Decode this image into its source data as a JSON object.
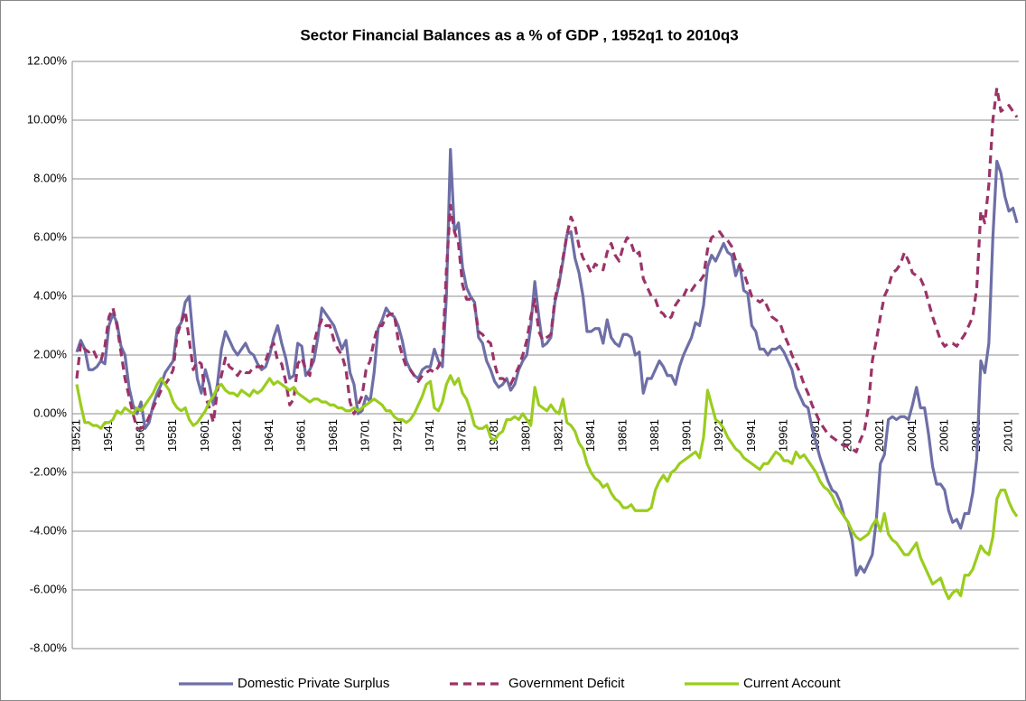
{
  "chart_data": {
    "type": "line",
    "title": "Sector Financial Balances as a % of GDP , 1952q1 to 2010q3",
    "categories": [
      "19521",
      null,
      null,
      null,
      null,
      null,
      null,
      null,
      "19541",
      null,
      null,
      null,
      null,
      null,
      null,
      null,
      "19561",
      null,
      null,
      null,
      null,
      null,
      null,
      null,
      "19581",
      null,
      null,
      null,
      null,
      null,
      null,
      null,
      "19601",
      null,
      null,
      null,
      null,
      null,
      null,
      null,
      "19621",
      null,
      null,
      null,
      null,
      null,
      null,
      null,
      "19641",
      null,
      null,
      null,
      null,
      null,
      null,
      null,
      "19661",
      null,
      null,
      null,
      null,
      null,
      null,
      null,
      "19681",
      null,
      null,
      null,
      null,
      null,
      null,
      null,
      "19701",
      null,
      null,
      null,
      null,
      null,
      null,
      null,
      "19721",
      null,
      null,
      null,
      null,
      null,
      null,
      null,
      "19741",
      null,
      null,
      null,
      null,
      null,
      null,
      null,
      "19761",
      null,
      null,
      null,
      null,
      null,
      null,
      null,
      "19781",
      null,
      null,
      null,
      null,
      null,
      null,
      null,
      "19801",
      null,
      null,
      null,
      null,
      null,
      null,
      null,
      "19821",
      null,
      null,
      null,
      null,
      null,
      null,
      null,
      "19841",
      null,
      null,
      null,
      null,
      null,
      null,
      null,
      "19861",
      null,
      null,
      null,
      null,
      null,
      null,
      null,
      "19881",
      null,
      null,
      null,
      null,
      null,
      null,
      null,
      "19901",
      null,
      null,
      null,
      null,
      null,
      null,
      null,
      "19921",
      null,
      null,
      null,
      null,
      null,
      null,
      null,
      "19941",
      null,
      null,
      null,
      null,
      null,
      null,
      null,
      "19961",
      null,
      null,
      null,
      null,
      null,
      null,
      null,
      "19981",
      null,
      null,
      null,
      null,
      null,
      null,
      null,
      "20001",
      null,
      null,
      null,
      null,
      null,
      null,
      null,
      "20021",
      null,
      null,
      null,
      null,
      null,
      null,
      null,
      "20041",
      null,
      null,
      null,
      null,
      null,
      null,
      null,
      "20061",
      null,
      null,
      null,
      null,
      null,
      null,
      null,
      "20081",
      null,
      null,
      null,
      null,
      null,
      null,
      null,
      "20101",
      null,
      null
    ],
    "series": [
      {
        "name": "Domestic Private Surplus",
        "color": "#6e6fa6",
        "dashed": false,
        "values": [
          2.1,
          2.5,
          2.2,
          1.5,
          1.5,
          1.6,
          1.8,
          1.7,
          3.0,
          3.4,
          3.1,
          2.3,
          2.0,
          0.9,
          0.3,
          0.0,
          0.4,
          -0.5,
          -0.3,
          0.3,
          0.7,
          1.0,
          1.4,
          1.6,
          1.8,
          2.9,
          3.1,
          3.8,
          4.0,
          2.5,
          1.2,
          0.7,
          1.5,
          1.0,
          0.3,
          1.0,
          2.2,
          2.8,
          2.5,
          2.2,
          2.0,
          2.2,
          2.4,
          2.1,
          2.0,
          1.7,
          1.5,
          1.6,
          2.0,
          2.6,
          3.0,
          2.4,
          1.9,
          1.2,
          1.3,
          2.4,
          2.3,
          1.3,
          1.5,
          1.8,
          2.6,
          3.6,
          3.4,
          3.2,
          3.0,
          2.6,
          2.2,
          2.5,
          1.4,
          1.0,
          0.0,
          0.1,
          0.6,
          0.4,
          1.4,
          2.9,
          3.2,
          3.6,
          3.4,
          3.3,
          3.0,
          2.5,
          1.8,
          1.5,
          1.3,
          1.2,
          1.5,
          1.6,
          1.6,
          2.2,
          1.8,
          1.6,
          4.0,
          9.0,
          6.2,
          6.5,
          5.0,
          4.3,
          4.0,
          3.8,
          2.6,
          2.4,
          1.8,
          1.5,
          1.1,
          0.9,
          1.0,
          1.2,
          0.8,
          1.0,
          1.5,
          1.8,
          2.0,
          3.0,
          4.5,
          3.3,
          2.3,
          2.4,
          2.6,
          3.8,
          4.4,
          5.2,
          6.1,
          6.2,
          5.3,
          4.8,
          4.0,
          2.8,
          2.8,
          2.9,
          2.9,
          2.4,
          3.2,
          2.6,
          2.4,
          2.3,
          2.7,
          2.7,
          2.6,
          2.0,
          2.1,
          0.7,
          1.2,
          1.2,
          1.5,
          1.8,
          1.6,
          1.3,
          1.3,
          1.0,
          1.6,
          2.0,
          2.3,
          2.6,
          3.1,
          3.0,
          3.7,
          5.0,
          5.4,
          5.2,
          5.5,
          5.8,
          5.5,
          5.4,
          4.7,
          5.1,
          4.2,
          4.1,
          3.0,
          2.8,
          2.2,
          2.2,
          2.0,
          2.2,
          2.2,
          2.3,
          2.1,
          1.8,
          1.5,
          0.9,
          0.6,
          0.3,
          0.2,
          -0.5,
          -1.0,
          -1.5,
          -1.9,
          -2.3,
          -2.6,
          -2.7,
          -3.0,
          -3.5,
          -3.7,
          -4.3,
          -5.5,
          -5.2,
          -5.4,
          -5.1,
          -4.8,
          -3.6,
          -1.7,
          -1.4,
          -0.2,
          -0.1,
          -0.2,
          -0.1,
          -0.1,
          -0.2,
          0.3,
          0.9,
          0.2,
          0.2,
          -0.7,
          -1.8,
          -2.4,
          -2.4,
          -2.6,
          -3.3,
          -3.7,
          -3.6,
          -3.9,
          -3.4,
          -3.4,
          -2.7,
          -1.5,
          1.8,
          1.4,
          2.4,
          6.0,
          8.6,
          8.2,
          7.4,
          6.9,
          7.0,
          6.5
        ]
      },
      {
        "name": "Government Deficit",
        "color": "#9b3368",
        "dashed": true,
        "values": [
          1.2,
          2.4,
          2.2,
          2.1,
          2.2,
          1.9,
          1.8,
          2.3,
          3.3,
          3.6,
          3.0,
          2.1,
          1.2,
          0.6,
          0.0,
          -0.5,
          -0.5,
          -0.4,
          -0.1,
          0.2,
          0.5,
          0.8,
          1.0,
          1.2,
          1.5,
          2.7,
          3.1,
          3.5,
          2.5,
          1.5,
          1.8,
          1.7,
          0.6,
          0.2,
          -0.3,
          0.8,
          1.3,
          1.9,
          1.6,
          1.5,
          1.3,
          1.5,
          1.4,
          1.4,
          1.6,
          1.6,
          1.6,
          1.8,
          2.2,
          2.4,
          1.8,
          1.7,
          1.1,
          0.3,
          0.5,
          1.7,
          1.9,
          1.5,
          1.3,
          2.4,
          2.9,
          3.2,
          3.0,
          3.0,
          2.5,
          2.2,
          2.0,
          1.5,
          0.4,
          0.0,
          0.3,
          0.6,
          1.5,
          1.8,
          2.5,
          3.0,
          3.0,
          3.3,
          3.4,
          3.4,
          2.5,
          2.0,
          1.6,
          1.5,
          1.3,
          1.1,
          1.3,
          1.4,
          1.5,
          1.4,
          1.6,
          2.0,
          4.9,
          7.1,
          6.2,
          5.8,
          4.4,
          3.9,
          3.9,
          3.7,
          2.8,
          2.7,
          2.5,
          2.4,
          1.7,
          1.2,
          1.2,
          1.1,
          1.0,
          1.3,
          1.6,
          2.0,
          2.5,
          3.3,
          3.9,
          2.8,
          2.5,
          2.6,
          2.7,
          3.9,
          4.5,
          5.3,
          6.1,
          6.7,
          6.4,
          5.7,
          5.3,
          5.1,
          4.8,
          5.1,
          5.0,
          4.9,
          5.5,
          5.8,
          5.4,
          5.2,
          5.7,
          6.0,
          5.8,
          5.4,
          5.5,
          4.6,
          4.3,
          4.0,
          3.9,
          3.5,
          3.4,
          3.2,
          3.3,
          3.7,
          3.9,
          4.0,
          4.3,
          4.2,
          4.4,
          4.5,
          4.7,
          5.6,
          6.0,
          6.1,
          6.2,
          6.0,
          5.9,
          5.7,
          5.2,
          5.0,
          4.8,
          4.4,
          4.0,
          3.9,
          3.8,
          3.9,
          3.6,
          3.3,
          3.2,
          3.1,
          2.7,
          2.4,
          2.0,
          1.7,
          1.4,
          1.0,
          0.7,
          0.3,
          0.0,
          -0.3,
          -0.5,
          -0.7,
          -0.8,
          -0.9,
          -1.0,
          -1.1,
          -1.1,
          -1.2,
          -1.3,
          -0.9,
          -0.6,
          0.2,
          1.8,
          2.5,
          3.3,
          4.0,
          4.3,
          4.8,
          4.9,
          5.1,
          5.5,
          5.2,
          4.8,
          4.7,
          4.6,
          4.3,
          3.8,
          3.3,
          2.9,
          2.5,
          2.3,
          2.4,
          2.4,
          2.3,
          2.5,
          2.7,
          3.0,
          3.3,
          4.3,
          6.9,
          6.5,
          7.8,
          10.0,
          11.1,
          10.3,
          10.4,
          10.5,
          10.3,
          10.1
        ]
      },
      {
        "name": "Current Account",
        "color": "#9acd1e",
        "dashed": false,
        "values": [
          1.0,
          0.3,
          -0.3,
          -0.3,
          -0.4,
          -0.4,
          -0.5,
          -0.3,
          -0.3,
          -0.2,
          0.1,
          0.0,
          0.2,
          0.1,
          0.0,
          0.2,
          0.1,
          0.3,
          0.5,
          0.7,
          1.0,
          1.2,
          1.0,
          0.8,
          0.4,
          0.2,
          0.1,
          0.2,
          -0.2,
          -0.4,
          -0.3,
          -0.1,
          0.1,
          0.4,
          0.6,
          0.9,
          1.0,
          0.8,
          0.7,
          0.7,
          0.6,
          0.8,
          0.7,
          0.6,
          0.8,
          0.7,
          0.8,
          1.0,
          1.2,
          1.0,
          1.1,
          1.0,
          0.9,
          0.8,
          0.9,
          0.7,
          0.6,
          0.5,
          0.4,
          0.5,
          0.5,
          0.4,
          0.4,
          0.3,
          0.3,
          0.2,
          0.2,
          0.1,
          0.1,
          0.2,
          0.1,
          0.2,
          0.3,
          0.4,
          0.5,
          0.4,
          0.3,
          0.1,
          0.1,
          -0.1,
          -0.2,
          -0.2,
          -0.3,
          -0.2,
          0.0,
          0.3,
          0.6,
          1.0,
          1.1,
          0.2,
          0.1,
          0.4,
          1.0,
          1.3,
          1.0,
          1.2,
          0.7,
          0.5,
          0.1,
          -0.4,
          -0.5,
          -0.5,
          -0.4,
          -0.8,
          -0.9,
          -0.7,
          -0.6,
          -0.2,
          -0.2,
          -0.1,
          -0.2,
          0.0,
          -0.2,
          -0.4,
          0.9,
          0.3,
          0.2,
          0.1,
          0.3,
          0.1,
          0.0,
          0.5,
          -0.3,
          -0.4,
          -0.6,
          -1.0,
          -1.2,
          -1.7,
          -2.0,
          -2.2,
          -2.3,
          -2.5,
          -2.4,
          -2.7,
          -2.9,
          -3.0,
          -3.2,
          -3.2,
          -3.1,
          -3.3,
          -3.3,
          -3.3,
          -3.3,
          -3.2,
          -2.6,
          -2.3,
          -2.1,
          -2.3,
          -2.0,
          -1.9,
          -1.7,
          -1.6,
          -1.5,
          -1.4,
          -1.3,
          -1.5,
          -0.8,
          0.8,
          0.3,
          -0.2,
          -0.3,
          -0.5,
          -0.8,
          -1.0,
          -1.2,
          -1.3,
          -1.5,
          -1.6,
          -1.7,
          -1.8,
          -1.9,
          -1.7,
          -1.7,
          -1.5,
          -1.3,
          -1.4,
          -1.6,
          -1.6,
          -1.7,
          -1.3,
          -1.5,
          -1.4,
          -1.6,
          -1.8,
          -2.0,
          -2.3,
          -2.5,
          -2.6,
          -2.8,
          -3.1,
          -3.3,
          -3.5,
          -3.7,
          -4.0,
          -4.2,
          -4.3,
          -4.2,
          -4.1,
          -3.8,
          -3.6,
          -4.0,
          -3.4,
          -4.1,
          -4.3,
          -4.4,
          -4.6,
          -4.8,
          -4.8,
          -4.6,
          -4.4,
          -4.9,
          -5.2,
          -5.5,
          -5.8,
          -5.7,
          -5.6,
          -6.0,
          -6.3,
          -6.1,
          -6.0,
          -6.2,
          -5.5,
          -5.5,
          -5.3,
          -4.9,
          -4.5,
          -4.7,
          -4.8,
          -4.2,
          -2.9,
          -2.6,
          -2.6,
          -3.0,
          -3.3,
          -3.5
        ]
      }
    ],
    "ylim": [
      -8,
      12
    ],
    "yticks": [
      {
        "value": -8,
        "label": "-8.00%"
      },
      {
        "value": -6,
        "label": "-6.00%"
      },
      {
        "value": -4,
        "label": "-4.00%"
      },
      {
        "value": -2,
        "label": "-2.00%"
      },
      {
        "value": 0,
        "label": "0.00%"
      },
      {
        "value": 2,
        "label": "2.00%"
      },
      {
        "value": 4,
        "label": "4.00%"
      },
      {
        "value": 6,
        "label": "6.00%"
      },
      {
        "value": 8,
        "label": "8.00%"
      },
      {
        "value": 10,
        "label": "10.00%"
      },
      {
        "value": 12,
        "label": "12.00%"
      }
    ],
    "grid": true,
    "legend": "bottom"
  }
}
